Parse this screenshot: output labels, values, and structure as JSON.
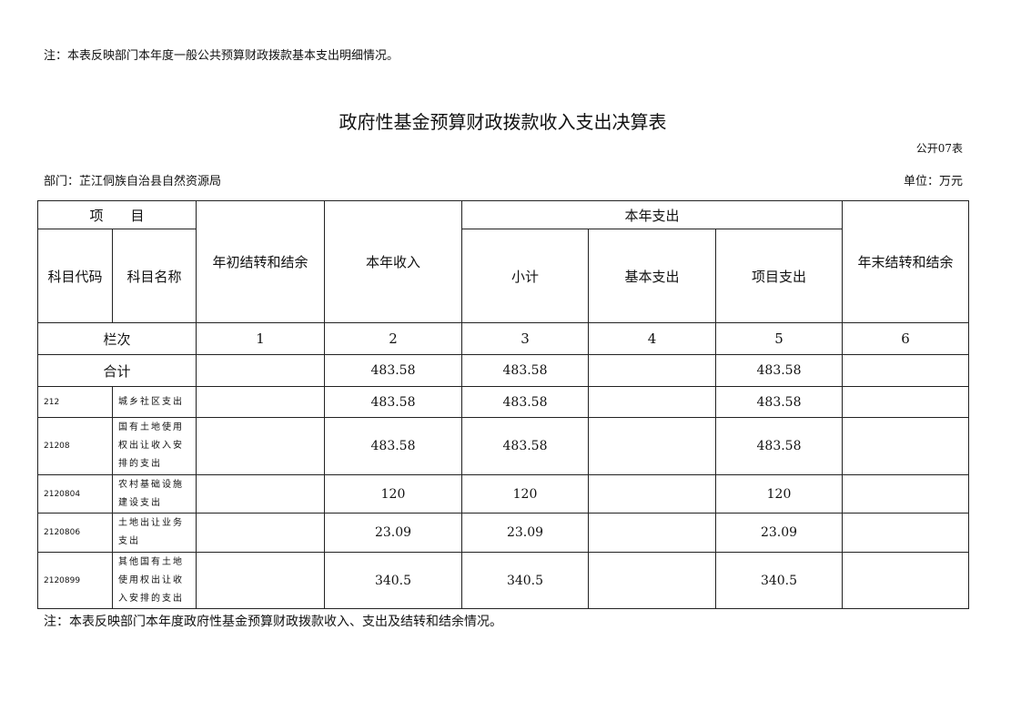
{
  "note_top": "注：本表反映部门本年度一般公共预算财政拨款基本支出明细情况。",
  "title": "政府性基金预算财政拨款收入支出决算表",
  "table_code": "公开07表",
  "department": "部门：芷江侗族自治县自然资源局",
  "unit": "单位：万元",
  "headers": {
    "item": "项　　目",
    "code": "科目代码",
    "name": "科目名称",
    "carry_begin": "年初结转和结余",
    "income": "本年收入",
    "expense": "本年支出",
    "subtotal": "小计",
    "basic": "基本支出",
    "project": "项目支出",
    "carry_end": "年末结转和结余"
  },
  "column_index": {
    "label": "栏次",
    "cols": [
      "1",
      "2",
      "3",
      "4",
      "5",
      "6"
    ]
  },
  "total": {
    "label": "合计",
    "carry_begin": "",
    "income": "483.58",
    "subtotal": "483.58",
    "basic": "",
    "project": "483.58",
    "carry_end": ""
  },
  "rows": [
    {
      "code": "212",
      "name": "城乡社区支出",
      "carry_begin": "",
      "income": "483.58",
      "subtotal": "483.58",
      "basic": "",
      "project": "483.58",
      "carry_end": ""
    },
    {
      "code": "21208",
      "name": "国有土地使用权出让收入安排的支出",
      "carry_begin": "",
      "income": "483.58",
      "subtotal": "483.58",
      "basic": "",
      "project": "483.58",
      "carry_end": ""
    },
    {
      "code": "2120804",
      "name": "农村基础设施建设支出",
      "carry_begin": "",
      "income": "120",
      "subtotal": "120",
      "basic": "",
      "project": "120",
      "carry_end": ""
    },
    {
      "code": "2120806",
      "name": "土地出让业务支出",
      "carry_begin": "",
      "income": "23.09",
      "subtotal": "23.09",
      "basic": "",
      "project": "23.09",
      "carry_end": ""
    },
    {
      "code": "2120899",
      "name": "其他国有土地使用权出让收入安排的支出",
      "carry_begin": "",
      "income": "340.5",
      "subtotal": "340.5",
      "basic": "",
      "project": "340.5",
      "carry_end": ""
    }
  ],
  "note_bottom": "注：本表反映部门本年度政府性基金预算财政拨款收入、支出及结转和结余情况。"
}
